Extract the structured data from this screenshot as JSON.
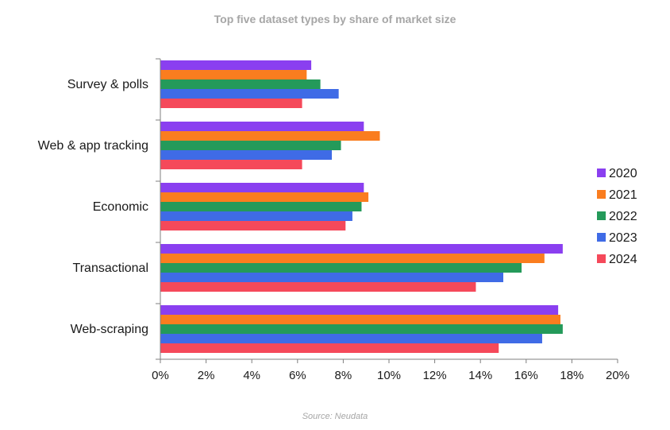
{
  "chart_data": {
    "type": "bar",
    "orientation": "horizontal",
    "title": "Top five dataset types by share of market size",
    "source": "Source: Neudata",
    "categories": [
      "Survey & polls",
      "Web & app tracking",
      "Economic",
      "Transactional",
      "Web-scraping"
    ],
    "series": [
      {
        "name": "2020",
        "color": "#8a3ff0",
        "values": [
          6.6,
          8.9,
          8.9,
          17.6,
          17.4
        ]
      },
      {
        "name": "2021",
        "color": "#fa7d1f",
        "values": [
          6.4,
          9.6,
          9.1,
          16.8,
          17.5
        ]
      },
      {
        "name": "2022",
        "color": "#249a5a",
        "values": [
          7.0,
          7.9,
          8.8,
          15.8,
          17.6
        ]
      },
      {
        "name": "2023",
        "color": "#3f6be6",
        "values": [
          7.8,
          7.5,
          8.4,
          15.0,
          16.7
        ]
      },
      {
        "name": "2024",
        "color": "#f5495a",
        "values": [
          6.2,
          6.2,
          8.1,
          13.8,
          14.8
        ]
      }
    ],
    "xlim": [
      0,
      20
    ],
    "xticks": [
      0,
      2,
      4,
      6,
      8,
      10,
      12,
      14,
      16,
      18,
      20
    ],
    "tick_suffix": "%",
    "grid": false,
    "legend_position": "right"
  }
}
